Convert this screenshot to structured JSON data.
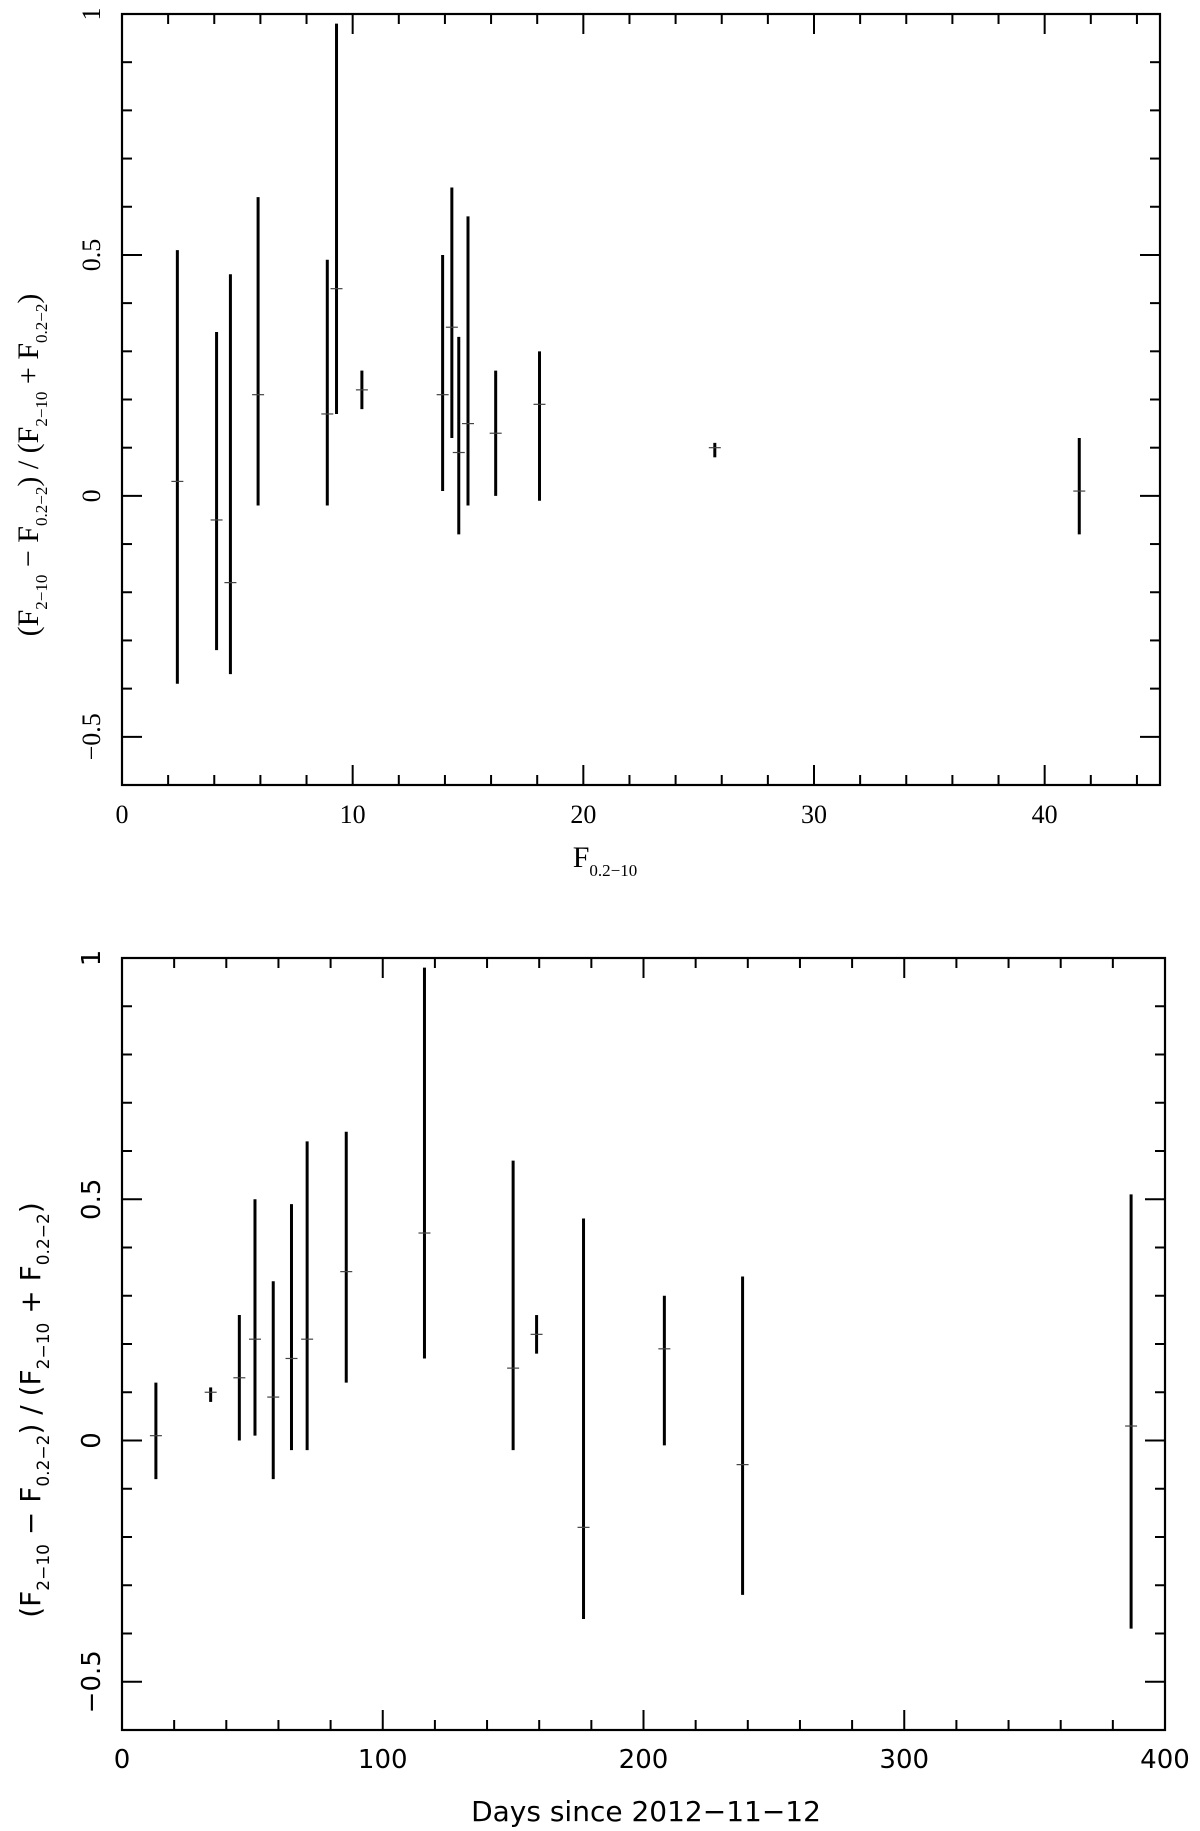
{
  "chart_data": [
    {
      "type": "scatter",
      "xlabel": {
        "base": "F",
        "sub": "0.2−10"
      },
      "ylabel": {
        "parts": [
          {
            "t": "(F"
          },
          {
            "s": "2−10"
          },
          {
            "t": " − F"
          },
          {
            "s": "0.2−2"
          },
          {
            "t": ") / (F"
          },
          {
            "s": "2−10"
          },
          {
            "t": " + F"
          },
          {
            "s": "0.2−2"
          },
          {
            "t": ")"
          }
        ]
      },
      "xlim": [
        0,
        45
      ],
      "ylim": [
        -0.6,
        1
      ],
      "xticks": [
        0,
        10,
        20,
        30,
        40
      ],
      "xtick_labels": [
        "0",
        "10",
        "20",
        "30",
        "40"
      ],
      "yticks": [
        -0.5,
        0,
        0.5,
        1
      ],
      "ytick_labels": [
        "−0.5",
        "0",
        "0.5",
        "1"
      ],
      "grid": false,
      "points": [
        {
          "x": 2.4,
          "y": 0.03,
          "ylo": -0.39,
          "yhi": 0.51
        },
        {
          "x": 4.1,
          "y": -0.05,
          "ylo": -0.32,
          "yhi": 0.34
        },
        {
          "x": 4.7,
          "y": -0.18,
          "ylo": -0.37,
          "yhi": 0.46
        },
        {
          "x": 5.9,
          "y": 0.21,
          "ylo": -0.02,
          "yhi": 0.62
        },
        {
          "x": 8.9,
          "y": 0.17,
          "ylo": -0.02,
          "yhi": 0.49
        },
        {
          "x": 9.3,
          "y": 0.43,
          "ylo": 0.17,
          "yhi": 0.98
        },
        {
          "x": 10.4,
          "y": 0.22,
          "ylo": 0.18,
          "yhi": 0.26
        },
        {
          "x": 13.9,
          "y": 0.21,
          "ylo": 0.01,
          "yhi": 0.5
        },
        {
          "x": 14.3,
          "y": 0.35,
          "ylo": 0.12,
          "yhi": 0.64
        },
        {
          "x": 14.6,
          "y": 0.09,
          "ylo": -0.08,
          "yhi": 0.33
        },
        {
          "x": 15.0,
          "y": 0.15,
          "ylo": -0.02,
          "yhi": 0.58
        },
        {
          "x": 16.2,
          "y": 0.13,
          "ylo": 0.0,
          "yhi": 0.26
        },
        {
          "x": 18.1,
          "y": 0.19,
          "ylo": -0.01,
          "yhi": 0.3
        },
        {
          "x": 25.7,
          "y": 0.1,
          "ylo": 0.08,
          "yhi": 0.11
        },
        {
          "x": 41.5,
          "y": 0.01,
          "ylo": -0.08,
          "yhi": 0.12
        }
      ]
    },
    {
      "type": "scatter",
      "xlabel": {
        "base": "Days since 2012−11−12",
        "sub": ""
      },
      "ylabel": {
        "parts": [
          {
            "t": "(F"
          },
          {
            "s": "2−10"
          },
          {
            "t": " − F"
          },
          {
            "s": "0.2−2"
          },
          {
            "t": ") / (F"
          },
          {
            "s": "2−10"
          },
          {
            "t": " + F"
          },
          {
            "s": "0.2−2"
          },
          {
            "t": ")"
          }
        ]
      },
      "xlim": [
        0,
        400
      ],
      "ylim": [
        -0.6,
        1
      ],
      "xticks": [
        0,
        100,
        200,
        300,
        400
      ],
      "xtick_labels": [
        "0",
        "100",
        "200",
        "300",
        "400"
      ],
      "yticks": [
        -0.5,
        0,
        0.5,
        1
      ],
      "ytick_labels": [
        "−0.5",
        "0",
        "0.5",
        "1"
      ],
      "grid": false,
      "points": [
        {
          "x": 13,
          "y": 0.01,
          "ylo": -0.08,
          "yhi": 0.12
        },
        {
          "x": 34,
          "y": 0.1,
          "ylo": 0.08,
          "yhi": 0.11
        },
        {
          "x": 45,
          "y": 0.13,
          "ylo": 0.0,
          "yhi": 0.26
        },
        {
          "x": 51,
          "y": 0.21,
          "ylo": 0.01,
          "yhi": 0.5
        },
        {
          "x": 58,
          "y": 0.09,
          "ylo": -0.08,
          "yhi": 0.33
        },
        {
          "x": 65,
          "y": 0.17,
          "ylo": -0.02,
          "yhi": 0.49
        },
        {
          "x": 71,
          "y": 0.21,
          "ylo": -0.02,
          "yhi": 0.62
        },
        {
          "x": 86,
          "y": 0.35,
          "ylo": 0.12,
          "yhi": 0.64
        },
        {
          "x": 116,
          "y": 0.43,
          "ylo": 0.17,
          "yhi": 0.98
        },
        {
          "x": 150,
          "y": 0.15,
          "ylo": -0.02,
          "yhi": 0.58
        },
        {
          "x": 159,
          "y": 0.22,
          "ylo": 0.18,
          "yhi": 0.26
        },
        {
          "x": 177,
          "y": -0.18,
          "ylo": -0.37,
          "yhi": 0.46
        },
        {
          "x": 208,
          "y": 0.19,
          "ylo": -0.01,
          "yhi": 0.3
        },
        {
          "x": 238,
          "y": -0.05,
          "ylo": -0.32,
          "yhi": 0.34
        },
        {
          "x": 387,
          "y": 0.03,
          "ylo": -0.39,
          "yhi": 0.51
        }
      ]
    }
  ]
}
